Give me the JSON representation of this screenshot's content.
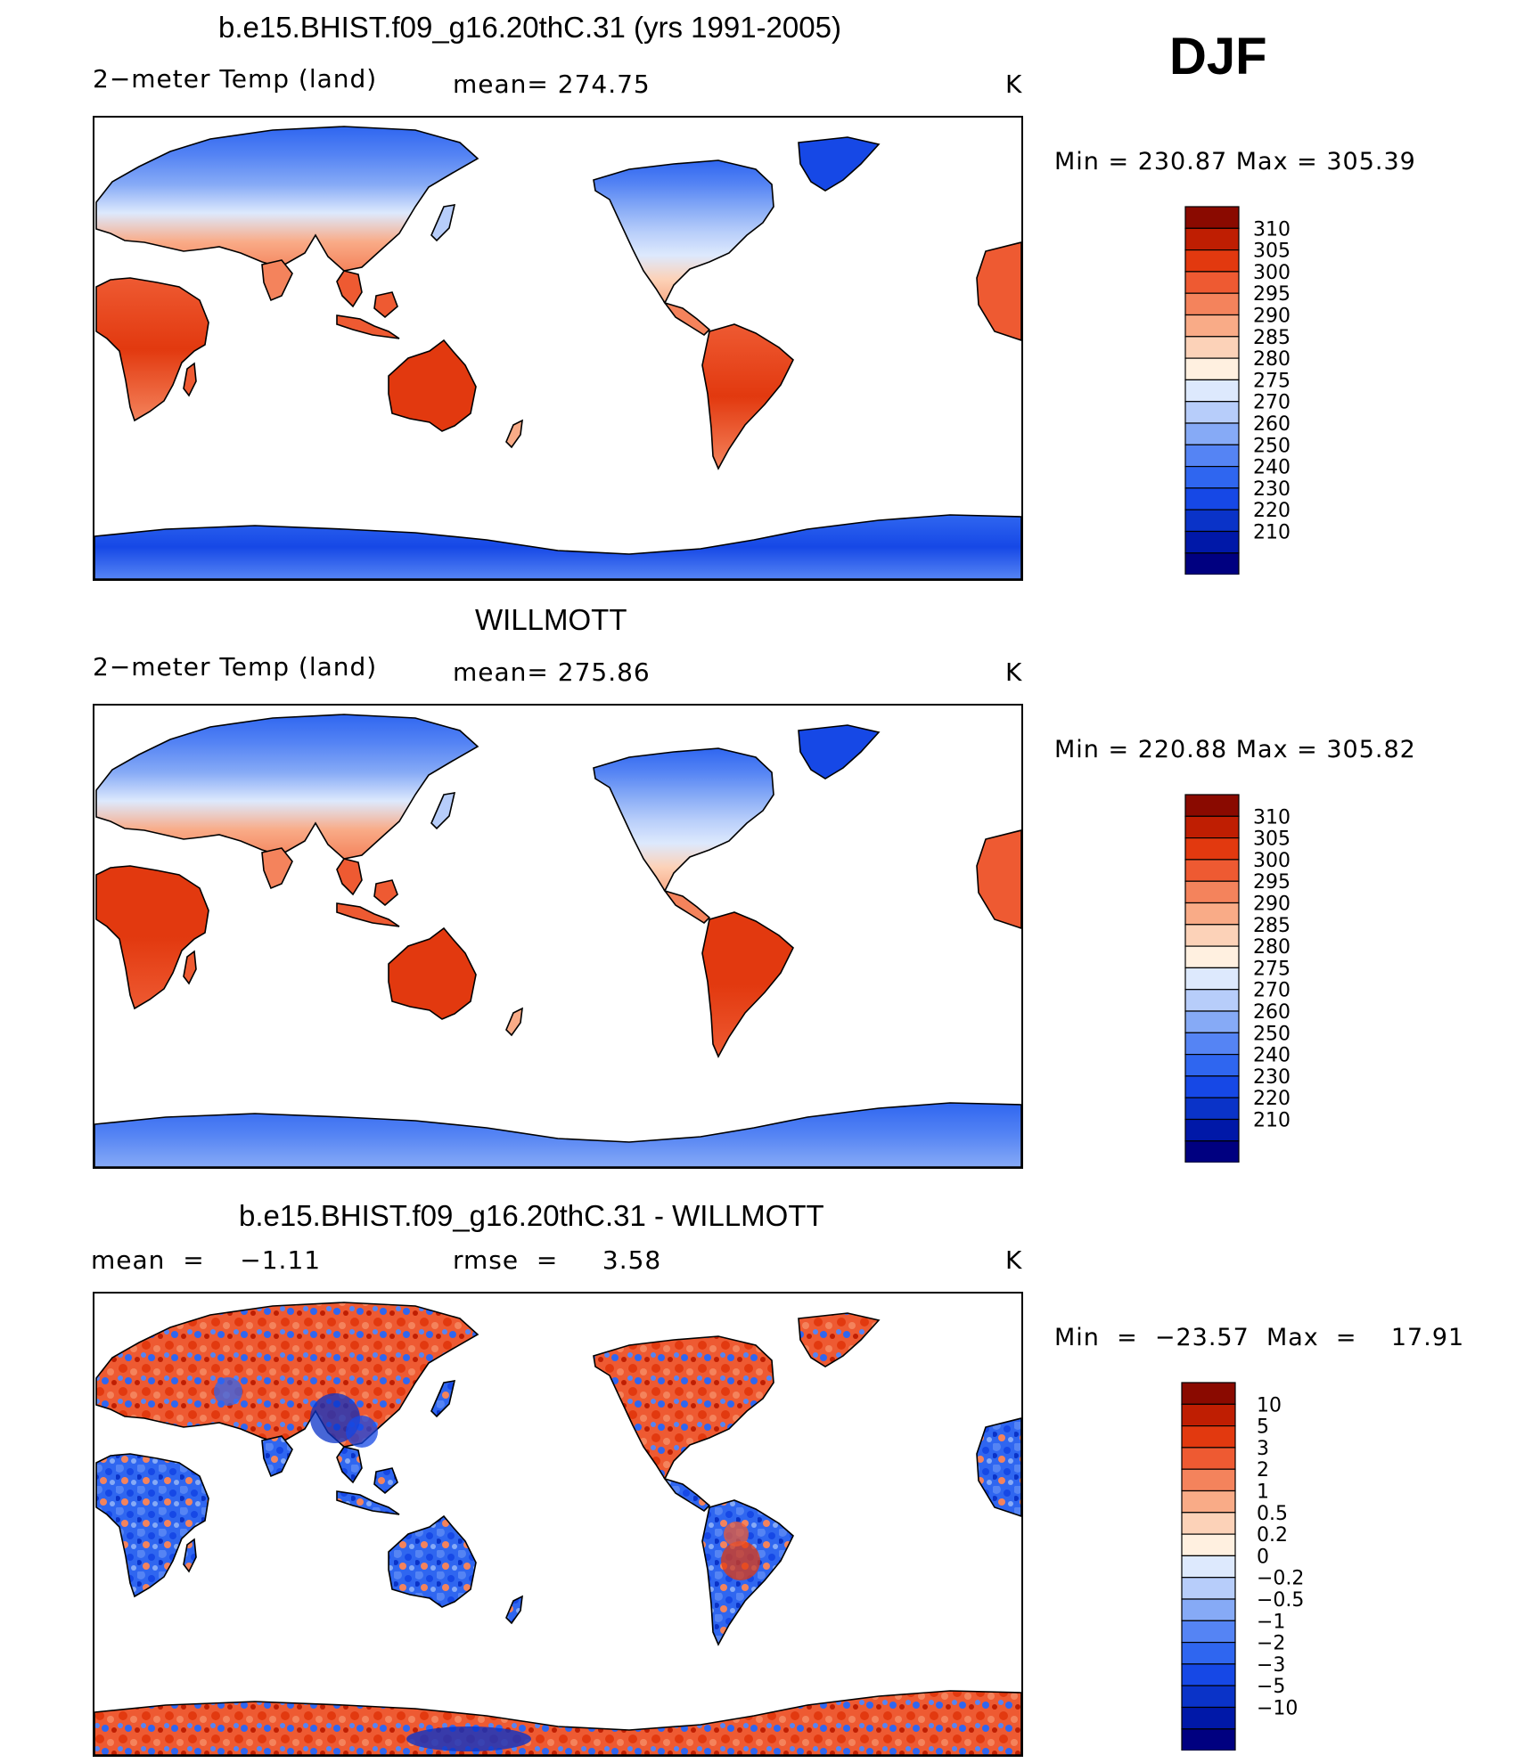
{
  "season": "DJF",
  "colors": {
    "temp_scale": [
      "#000080",
      "#0018a8",
      "#0a33c8",
      "#1648e6",
      "#2f66f0",
      "#5584f4",
      "#86aaf6",
      "#b7cdfa",
      "#dde9fd",
      "#fff0e0",
      "#fcd2b8",
      "#f9ab87",
      "#f4835c",
      "#ee5a32",
      "#e2390f",
      "#bf1e02",
      "#8a0a00"
    ],
    "diff_scale": [
      "#000080",
      "#0018a8",
      "#0a33c8",
      "#1648e6",
      "#2f66f0",
      "#5584f4",
      "#86aaf6",
      "#b7cdfa",
      "#dde9fd",
      "#fff0e0",
      "#fcd2b8",
      "#f9ab87",
      "#f4835c",
      "#ee5a32",
      "#e2390f",
      "#bf1e02",
      "#8a0a00"
    ]
  },
  "panels": [
    {
      "title": "b.e15.BHIST.f09_g16.20thC.31 (yrs 1991-2005)",
      "left_label": "2−meter Temp (land)",
      "mid_label": "mean= 274.75",
      "units": "K",
      "min_max": "Min  =  230.87  Max  =  305.39",
      "colorbar_labels": [
        "310",
        "305",
        "300",
        "295",
        "290",
        "285",
        "280",
        "275",
        "270",
        "260",
        "250",
        "240",
        "230",
        "220",
        "210"
      ],
      "field": "model"
    },
    {
      "title": "WILLMOTT",
      "left_label": "2−meter Temp (land)",
      "mid_label": "mean= 275.86",
      "units": "K",
      "min_max": "Min  =  220.88  Max  =  305.82",
      "colorbar_labels": [
        "310",
        "305",
        "300",
        "295",
        "290",
        "285",
        "280",
        "275",
        "270",
        "260",
        "250",
        "240",
        "230",
        "220",
        "210"
      ],
      "field": "obs"
    },
    {
      "title": "b.e15.BHIST.f09_g16.20thC.31 - WILLMOTT",
      "left_label": "mean  =    −1.11",
      "mid_label": "rmse  =     3.58",
      "units": "K",
      "min_max": "Min  =  −23.57  Max  =    17.91",
      "colorbar_labels": [
        "10",
        "5",
        "3",
        "2",
        "1",
        "0.5",
        "0.2",
        "0",
        "−0.2",
        "−0.5",
        "−1",
        "−2",
        "−3",
        "−5",
        "−10"
      ],
      "field": "diff"
    }
  ]
}
